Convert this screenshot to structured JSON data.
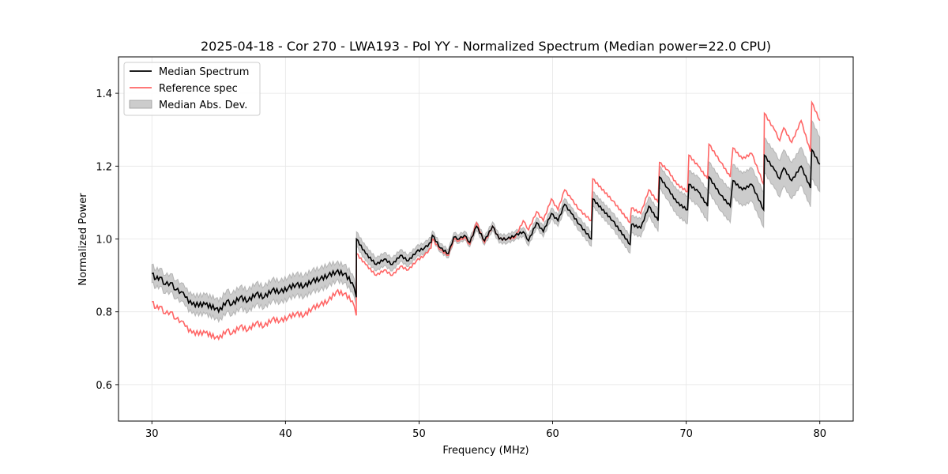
{
  "chart_data": {
    "type": "line",
    "title": "2025-04-18 - Cor 270 - LWA193 - Pol YY - Normalized Spectrum (Median power=22.0 CPU)",
    "xlabel": "Frequency (MHz)",
    "ylabel": "Normalized Power",
    "xlim": [
      27.5,
      82.5
    ],
    "ylim": [
      0.5,
      1.5
    ],
    "xticks": [
      30,
      40,
      50,
      60,
      70,
      80
    ],
    "xtick_labels": [
      "30",
      "40",
      "50",
      "60",
      "70",
      "80"
    ],
    "yticks": [
      0.6,
      0.8,
      1.0,
      1.2,
      1.4
    ],
    "ytick_labels": [
      "0.6",
      "0.8",
      "1.0",
      "1.2",
      "1.4"
    ],
    "grid": true,
    "legend": {
      "placement": "top-left",
      "entries": [
        {
          "label": "Median Spectrum",
          "kind": "line",
          "color": "#000000"
        },
        {
          "label": "Reference spec",
          "kind": "line",
          "color": "#ff6666"
        },
        {
          "label": "Median Abs. Dev.",
          "kind": "band",
          "color": "#cccccc"
        }
      ]
    },
    "series": [
      {
        "name": "Median Spectrum",
        "color": "#000000",
        "x": [
          30.0,
          30.3,
          30.6,
          31.0,
          31.4,
          31.8,
          32.2,
          32.5,
          33.0,
          34.0,
          34.8,
          35.0,
          35.6,
          36.0,
          36.6,
          37.2,
          37.8,
          38.4,
          39.0,
          39.6,
          40.2,
          40.8,
          41.4,
          42.0,
          42.6,
          43.2,
          43.8,
          44.4,
          45.0,
          45.3,
          45.31,
          46.0,
          46.8,
          47.4,
          48.0,
          48.6,
          49.2,
          49.8,
          50.4,
          50.9,
          51.0,
          51.6,
          52.2,
          52.6,
          53.0,
          53.4,
          53.8,
          54.3,
          54.9,
          55.5,
          56.0,
          56.6,
          57.2,
          57.8,
          58.2,
          58.8,
          59.3,
          59.9,
          60.4,
          60.9,
          61.4,
          62.0,
          62.9,
          63.0,
          64.5,
          65.8,
          65.9,
          66.6,
          67.2,
          67.9,
          68.0,
          68.6,
          69.3,
          70.1,
          70.2,
          70.9,
          71.6,
          71.7,
          72.6,
          73.3,
          73.5,
          74.2,
          74.9,
          75.8,
          75.85,
          76.6,
          77.0,
          77.3,
          77.9,
          78.6,
          79.3,
          79.4,
          80.0
        ],
        "y": [
          0.905,
          0.89,
          0.895,
          0.875,
          0.88,
          0.86,
          0.855,
          0.84,
          0.82,
          0.82,
          0.81,
          0.8,
          0.83,
          0.82,
          0.84,
          0.83,
          0.85,
          0.84,
          0.86,
          0.855,
          0.865,
          0.875,
          0.87,
          0.885,
          0.89,
          0.9,
          0.91,
          0.905,
          0.88,
          0.84,
          1.0,
          0.96,
          0.93,
          0.945,
          0.93,
          0.955,
          0.94,
          0.965,
          0.975,
          0.99,
          1.01,
          0.975,
          0.96,
          1.005,
          1.0,
          1.01,
          0.99,
          1.035,
          0.995,
          1.035,
          1.0,
          1.0,
          1.01,
          1.02,
          0.995,
          1.045,
          1.02,
          1.07,
          1.05,
          1.095,
          1.07,
          1.04,
          1.0,
          1.11,
          1.05,
          0.985,
          1.04,
          1.03,
          1.09,
          1.05,
          1.17,
          1.14,
          1.1,
          1.08,
          1.15,
          1.13,
          1.09,
          1.17,
          1.12,
          1.09,
          1.16,
          1.135,
          1.15,
          1.08,
          1.23,
          1.19,
          1.165,
          1.195,
          1.16,
          1.2,
          1.14,
          1.245,
          1.205
        ],
        "mad": [
          0.025,
          0.025,
          0.025,
          0.025,
          0.025,
          0.025,
          0.025,
          0.025,
          0.025,
          0.027,
          0.028,
          0.028,
          0.03,
          0.03,
          0.03,
          0.03,
          0.03,
          0.03,
          0.03,
          0.03,
          0.03,
          0.03,
          0.03,
          0.03,
          0.03,
          0.03,
          0.025,
          0.025,
          0.025,
          0.025,
          0.02,
          0.02,
          0.018,
          0.018,
          0.018,
          0.016,
          0.016,
          0.015,
          0.015,
          0.015,
          0.012,
          0.012,
          0.012,
          0.012,
          0.012,
          0.012,
          0.012,
          0.012,
          0.012,
          0.012,
          0.012,
          0.012,
          0.012,
          0.012,
          0.014,
          0.014,
          0.015,
          0.015,
          0.016,
          0.016,
          0.017,
          0.018,
          0.02,
          0.02,
          0.022,
          0.024,
          0.024,
          0.025,
          0.026,
          0.03,
          0.03,
          0.032,
          0.035,
          0.038,
          0.038,
          0.04,
          0.042,
          0.042,
          0.044,
          0.045,
          0.045,
          0.045,
          0.046,
          0.048,
          0.048,
          0.05,
          0.05,
          0.05,
          0.05,
          0.052,
          0.052,
          0.08,
          0.075
        ]
      },
      {
        "name": "Reference spec",
        "color": "#ff6666",
        "x": [
          30.0,
          30.3,
          30.6,
          31.0,
          31.4,
          31.8,
          32.2,
          32.5,
          33.0,
          34.0,
          34.8,
          35.0,
          35.6,
          36.0,
          36.6,
          37.2,
          37.8,
          38.4,
          39.0,
          39.6,
          40.2,
          40.8,
          41.4,
          42.0,
          42.6,
          43.2,
          43.8,
          44.4,
          45.0,
          45.3,
          45.31,
          46.0,
          46.8,
          47.4,
          48.0,
          48.6,
          49.2,
          49.8,
          50.4,
          50.9,
          51.0,
          51.6,
          52.2,
          52.6,
          53.0,
          53.4,
          53.8,
          54.3,
          54.9,
          55.5,
          56.0,
          56.6,
          57.2,
          57.8,
          58.2,
          58.8,
          59.3,
          59.9,
          60.4,
          60.9,
          61.4,
          62.0,
          62.9,
          63.0,
          64.5,
          65.8,
          65.9,
          66.6,
          67.2,
          67.9,
          68.0,
          68.6,
          69.3,
          70.1,
          70.2,
          70.9,
          71.6,
          71.7,
          72.6,
          73.3,
          73.5,
          74.2,
          74.9,
          75.8,
          75.85,
          76.6,
          77.0,
          77.3,
          77.9,
          78.6,
          79.3,
          79.4,
          80.0
        ],
        "y": [
          0.828,
          0.81,
          0.815,
          0.795,
          0.8,
          0.78,
          0.775,
          0.76,
          0.742,
          0.742,
          0.73,
          0.725,
          0.75,
          0.74,
          0.76,
          0.75,
          0.77,
          0.76,
          0.78,
          0.775,
          0.785,
          0.795,
          0.79,
          0.81,
          0.82,
          0.83,
          0.855,
          0.85,
          0.83,
          0.79,
          0.96,
          0.93,
          0.9,
          0.915,
          0.9,
          0.925,
          0.915,
          0.94,
          0.955,
          0.975,
          1.0,
          0.97,
          0.955,
          1.0,
          0.995,
          1.005,
          0.985,
          1.045,
          0.99,
          1.035,
          1.0,
          1.0,
          1.005,
          1.05,
          1.025,
          1.075,
          1.05,
          1.11,
          1.08,
          1.135,
          1.11,
          1.08,
          1.05,
          1.165,
          1.105,
          1.045,
          1.085,
          1.07,
          1.135,
          1.1,
          1.21,
          1.19,
          1.15,
          1.13,
          1.23,
          1.2,
          1.165,
          1.26,
          1.21,
          1.17,
          1.25,
          1.22,
          1.235,
          1.15,
          1.345,
          1.3,
          1.27,
          1.305,
          1.265,
          1.325,
          1.24,
          1.375,
          1.325
        ]
      }
    ]
  }
}
